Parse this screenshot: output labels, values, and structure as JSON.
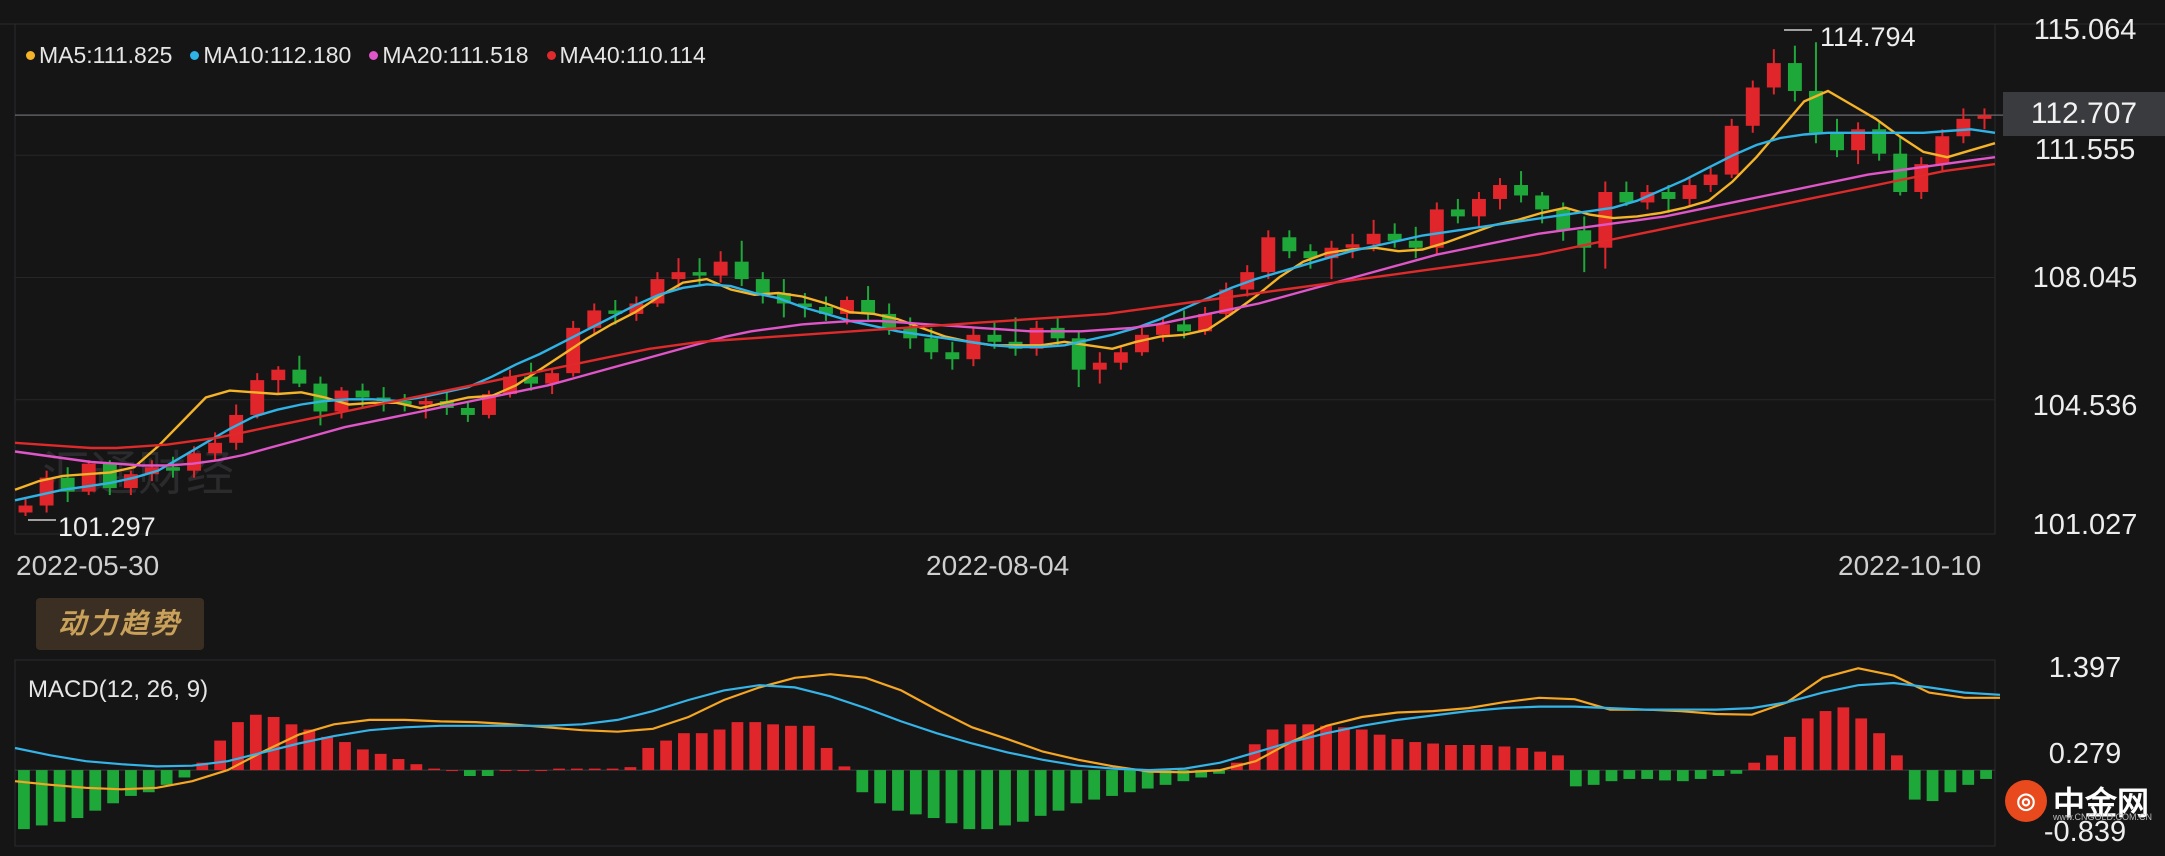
{
  "colors": {
    "background": "#151516",
    "up": "#e0252b",
    "down": "#1fa83a",
    "ma5": "#f5b327",
    "ma10": "#2eb3e6",
    "ma20": "#e055c8",
    "ma40": "#de2a2a",
    "dif": "#f5a623",
    "dea": "#35b4e8"
  },
  "legend": [
    {
      "label": "MA5:111.825",
      "color": "#f5b327"
    },
    {
      "label": "MA10:112.180",
      "color": "#2eb3e6"
    },
    {
      "label": "MA20:111.518",
      "color": "#e055c8"
    },
    {
      "label": "MA40:110.114",
      "color": "#de2a2a"
    }
  ],
  "annotations": {
    "high": "114.794",
    "low": "101.297",
    "last_price": "112.707"
  },
  "trend_button": "动力趋势",
  "macd_title": "MACD(12, 26, 9)",
  "watermark": "汇通财经",
  "logo": {
    "name": "中金网",
    "url": "www.CNGOLD.COM.CN"
  },
  "chart_data": [
    {
      "type": "candlestick",
      "ylim": [
        101.027,
        115.064
      ],
      "y_ticks": [
        "115.064",
        "111.555",
        "108.045",
        "104.536",
        "101.027"
      ],
      "x_ticks": [
        "2022-05-30",
        "2022-08-04",
        "2022-10-10"
      ],
      "last_price": 112.707,
      "candles": [
        [
          101.3,
          101.7,
          101.2,
          101.5
        ],
        [
          101.5,
          102.5,
          101.3,
          102.3
        ],
        [
          102.3,
          102.6,
          101.6,
          101.9
        ],
        [
          101.9,
          102.8,
          101.8,
          102.7
        ],
        [
          102.7,
          102.8,
          101.8,
          102.0
        ],
        [
          102.0,
          102.5,
          101.8,
          102.4
        ],
        [
          102.4,
          102.8,
          102.2,
          102.6
        ],
        [
          102.6,
          102.9,
          102.3,
          102.5
        ],
        [
          102.5,
          103.2,
          102.3,
          103.0
        ],
        [
          103.0,
          103.6,
          102.8,
          103.3
        ],
        [
          103.3,
          104.4,
          103.1,
          104.1
        ],
        [
          104.1,
          105.3,
          104.0,
          105.1
        ],
        [
          105.1,
          105.5,
          104.7,
          105.4
        ],
        [
          105.4,
          105.8,
          104.9,
          105.0
        ],
        [
          105.0,
          105.2,
          103.8,
          104.2
        ],
        [
          104.2,
          104.9,
          104.0,
          104.8
        ],
        [
          104.8,
          105.0,
          104.3,
          104.6
        ],
        [
          104.6,
          104.9,
          104.2,
          104.5
        ],
        [
          104.5,
          104.7,
          104.2,
          104.4
        ],
        [
          104.4,
          104.7,
          104.0,
          104.5
        ],
        [
          104.5,
          104.8,
          104.1,
          104.3
        ],
        [
          104.3,
          104.5,
          103.9,
          104.1
        ],
        [
          104.1,
          104.8,
          104.0,
          104.7
        ],
        [
          104.7,
          105.4,
          104.6,
          105.2
        ],
        [
          105.2,
          105.6,
          104.8,
          105.0
        ],
        [
          105.0,
          105.4,
          104.7,
          105.3
        ],
        [
          105.3,
          106.8,
          105.2,
          106.6
        ],
        [
          106.6,
          107.3,
          106.4,
          107.1
        ],
        [
          107.1,
          107.4,
          106.7,
          107.0
        ],
        [
          107.0,
          107.5,
          106.8,
          107.3
        ],
        [
          107.3,
          108.2,
          107.2,
          108.0
        ],
        [
          108.0,
          108.6,
          107.7,
          108.2
        ],
        [
          108.2,
          108.6,
          107.8,
          108.1
        ],
        [
          108.1,
          108.8,
          107.9,
          108.5
        ],
        [
          108.5,
          109.1,
          107.8,
          108.0
        ],
        [
          108.0,
          108.2,
          107.3,
          107.6
        ],
        [
          107.6,
          108.0,
          106.9,
          107.3
        ],
        [
          107.3,
          107.6,
          106.9,
          107.2
        ],
        [
          107.2,
          107.5,
          106.8,
          107.0
        ],
        [
          107.0,
          107.5,
          106.7,
          107.4
        ],
        [
          107.4,
          107.8,
          106.8,
          107.0
        ],
        [
          107.0,
          107.3,
          106.4,
          106.6
        ],
        [
          106.6,
          106.9,
          106.0,
          106.3
        ],
        [
          106.3,
          106.6,
          105.7,
          105.9
        ],
        [
          105.9,
          106.2,
          105.4,
          105.7
        ],
        [
          105.7,
          106.6,
          105.5,
          106.4
        ],
        [
          106.4,
          106.8,
          106.0,
          106.2
        ],
        [
          106.2,
          106.9,
          105.8,
          106.0
        ],
        [
          106.0,
          106.8,
          105.8,
          106.6
        ],
        [
          106.6,
          106.9,
          106.1,
          106.3
        ],
        [
          106.3,
          106.5,
          104.9,
          105.4
        ],
        [
          105.4,
          105.9,
          105.0,
          105.6
        ],
        [
          105.6,
          106.1,
          105.4,
          105.9
        ],
        [
          105.9,
          106.6,
          105.8,
          106.4
        ],
        [
          106.4,
          106.9,
          106.2,
          106.7
        ],
        [
          106.7,
          107.1,
          106.3,
          106.5
        ],
        [
          106.5,
          107.2,
          106.4,
          107.0
        ],
        [
          107.0,
          107.9,
          106.9,
          107.7
        ],
        [
          107.7,
          108.4,
          107.5,
          108.2
        ],
        [
          108.2,
          109.4,
          108.0,
          109.2
        ],
        [
          109.2,
          109.4,
          108.6,
          108.8
        ],
        [
          108.8,
          109.0,
          108.3,
          108.6
        ],
        [
          108.6,
          109.1,
          108.0,
          108.9
        ],
        [
          108.9,
          109.3,
          108.6,
          109.0
        ],
        [
          109.0,
          109.7,
          108.8,
          109.3
        ],
        [
          109.3,
          109.6,
          108.9,
          109.1
        ],
        [
          109.1,
          109.5,
          108.6,
          108.9
        ],
        [
          108.9,
          110.2,
          108.7,
          110.0
        ],
        [
          110.0,
          110.3,
          109.6,
          109.8
        ],
        [
          109.8,
          110.5,
          109.5,
          110.3
        ],
        [
          110.3,
          110.9,
          110.0,
          110.7
        ],
        [
          110.7,
          111.1,
          110.2,
          110.4
        ],
        [
          110.4,
          110.5,
          109.6,
          110.0
        ],
        [
          110.0,
          110.2,
          109.1,
          109.4
        ],
        [
          109.4,
          109.8,
          108.2,
          108.9
        ],
        [
          108.9,
          110.8,
          108.3,
          110.5
        ],
        [
          110.5,
          110.8,
          110.1,
          110.2
        ],
        [
          110.2,
          110.7,
          110.0,
          110.5
        ],
        [
          110.5,
          110.7,
          109.9,
          110.3
        ],
        [
          110.3,
          110.9,
          110.1,
          110.7
        ],
        [
          110.7,
          111.2,
          110.5,
          111.0
        ],
        [
          111.0,
          112.6,
          110.9,
          112.4
        ],
        [
          112.4,
          113.7,
          112.2,
          113.5
        ],
        [
          113.5,
          114.6,
          113.3,
          114.2
        ],
        [
          114.2,
          114.7,
          113.1,
          113.4
        ],
        [
          113.4,
          114.8,
          111.9,
          112.2
        ],
        [
          112.2,
          112.6,
          111.5,
          111.7
        ],
        [
          111.7,
          112.5,
          111.3,
          112.3
        ],
        [
          112.3,
          112.5,
          111.4,
          111.6
        ],
        [
          111.6,
          112.1,
          110.4,
          110.5
        ],
        [
          110.5,
          111.5,
          110.3,
          111.3
        ],
        [
          111.3,
          112.3,
          111.1,
          112.1
        ],
        [
          112.1,
          112.9,
          111.9,
          112.6
        ],
        [
          112.6,
          112.9,
          112.3,
          112.7
        ]
      ],
      "ma": {
        "MA5": [
          101.95,
          102.2,
          102.35,
          102.4,
          102.45,
          102.6,
          103.2,
          103.9,
          104.6,
          104.8,
          104.75,
          104.7,
          104.75,
          104.6,
          104.4,
          104.45,
          104.45,
          104.3,
          104.45,
          104.6,
          104.65,
          104.95,
          105.4,
          105.85,
          106.3,
          106.7,
          107.05,
          107.5,
          107.9,
          108.0,
          107.7,
          107.55,
          107.6,
          107.5,
          107.3,
          107.05,
          107.0,
          106.85,
          106.6,
          106.35,
          106.2,
          106.1,
          106.1,
          106.1,
          106.2,
          106.1,
          106.0,
          106.2,
          106.35,
          106.4,
          106.55,
          107.0,
          107.5,
          108.05,
          108.5,
          108.75,
          108.85,
          108.9,
          108.8,
          108.85,
          109.05,
          109.3,
          109.55,
          109.7,
          109.9,
          110.05,
          109.85,
          109.75,
          109.8,
          109.9,
          110.05,
          110.25,
          110.8,
          111.5,
          112.3,
          113.1,
          113.4,
          113.0,
          112.6,
          112.1,
          111.65,
          111.5,
          111.7,
          111.9
        ],
        "MA10": [
          101.65,
          101.8,
          101.95,
          102.05,
          102.15,
          102.3,
          102.5,
          102.9,
          103.3,
          103.7,
          104.05,
          104.25,
          104.4,
          104.5,
          104.55,
          104.55,
          104.5,
          104.6,
          104.75,
          104.9,
          105.2,
          105.55,
          105.85,
          106.2,
          106.55,
          106.9,
          107.25,
          107.55,
          107.75,
          107.85,
          107.8,
          107.6,
          107.45,
          107.2,
          107.0,
          106.8,
          106.65,
          106.5,
          106.4,
          106.3,
          106.2,
          106.1,
          106.05,
          106.05,
          106.1,
          106.25,
          106.4,
          106.6,
          106.85,
          107.15,
          107.45,
          107.75,
          108.0,
          108.2,
          108.4,
          108.6,
          108.8,
          108.95,
          109.1,
          109.25,
          109.35,
          109.45,
          109.55,
          109.65,
          109.75,
          109.85,
          109.95,
          110.05,
          110.25,
          110.55,
          110.85,
          111.2,
          111.55,
          111.85,
          112.05,
          112.15,
          112.2,
          112.2,
          112.2,
          112.2,
          112.2,
          112.25,
          112.3,
          112.2
        ],
        "MA20": [
          103.05,
          102.95,
          102.85,
          102.75,
          102.7,
          102.65,
          102.65,
          102.7,
          102.8,
          102.95,
          103.15,
          103.35,
          103.55,
          103.75,
          103.9,
          104.05,
          104.2,
          104.35,
          104.5,
          104.65,
          104.8,
          104.95,
          105.15,
          105.35,
          105.55,
          105.75,
          105.95,
          106.15,
          106.35,
          106.5,
          106.6,
          106.7,
          106.75,
          106.8,
          106.8,
          106.75,
          106.7,
          106.65,
          106.6,
          106.55,
          106.5,
          106.5,
          106.5,
          106.55,
          106.6,
          106.7,
          106.85,
          107.0,
          107.15,
          107.3,
          107.5,
          107.7,
          107.9,
          108.1,
          108.3,
          108.5,
          108.7,
          108.85,
          109.0,
          109.15,
          109.3,
          109.4,
          109.5,
          109.6,
          109.7,
          109.8,
          109.95,
          110.1,
          110.25,
          110.4,
          110.55,
          110.7,
          110.85,
          111.0,
          111.1,
          111.2,
          111.3,
          111.4,
          111.5
        ],
        "MA40": [
          103.3,
          103.25,
          103.2,
          103.15,
          103.15,
          103.2,
          103.25,
          103.35,
          103.45,
          103.6,
          103.75,
          103.9,
          104.05,
          104.2,
          104.35,
          104.5,
          104.65,
          104.8,
          104.95,
          105.1,
          105.25,
          105.4,
          105.55,
          105.7,
          105.85,
          106.0,
          106.1,
          106.2,
          106.25,
          106.3,
          106.35,
          106.4,
          106.45,
          106.5,
          106.55,
          106.6,
          106.65,
          106.7,
          106.75,
          106.8,
          106.85,
          106.9,
          106.95,
          107.0,
          107.1,
          107.2,
          107.3,
          107.4,
          107.5,
          107.6,
          107.7,
          107.8,
          107.9,
          108.0,
          108.1,
          108.2,
          108.3,
          108.4,
          108.5,
          108.6,
          108.7,
          108.85,
          109.0,
          109.15,
          109.3,
          109.45,
          109.6,
          109.75,
          109.9,
          110.05,
          110.2,
          110.35,
          110.5,
          110.65,
          110.8,
          110.95,
          111.1,
          111.2,
          111.3
        ]
      }
    },
    {
      "type": "macd",
      "title": "MACD(12, 26, 9)",
      "ylim": [
        -0.839,
        1.397
      ],
      "y_ticks": [
        "1.397",
        "0.279",
        "-0.839"
      ],
      "histogram": [
        -0.8,
        -0.75,
        -0.7,
        -0.65,
        -0.55,
        -0.45,
        -0.35,
        -0.3,
        -0.2,
        -0.1,
        0.1,
        0.4,
        0.65,
        0.75,
        0.72,
        0.62,
        0.55,
        0.45,
        0.38,
        0.28,
        0.22,
        0.15,
        0.08,
        0.02,
        0.0,
        -0.08,
        -0.08,
        0.0,
        0.0,
        0.0,
        0.02,
        0.02,
        0.02,
        0.02,
        0.04,
        0.3,
        0.4,
        0.5,
        0.5,
        0.55,
        0.65,
        0.65,
        0.62,
        0.6,
        0.6,
        0.3,
        0.05,
        -0.3,
        -0.45,
        -0.55,
        -0.6,
        -0.65,
        -0.72,
        -0.8,
        -0.8,
        -0.75,
        -0.7,
        -0.62,
        -0.55,
        -0.45,
        -0.4,
        -0.35,
        -0.3,
        -0.25,
        -0.2,
        -0.15,
        -0.1,
        -0.05,
        0.1,
        0.35,
        0.55,
        0.62,
        0.62,
        0.6,
        0.58,
        0.55,
        0.48,
        0.42,
        0.38,
        0.36,
        0.34,
        0.34,
        0.34,
        0.32,
        0.3,
        0.25,
        0.2,
        -0.22,
        -0.2,
        -0.15,
        -0.12,
        -0.12,
        -0.14,
        -0.15,
        -0.12,
        -0.08,
        -0.05,
        0.1,
        0.2,
        0.45,
        0.7,
        0.8,
        0.85,
        0.7,
        0.5,
        0.2,
        -0.4,
        -0.42,
        -0.3,
        -0.2,
        -0.12
      ],
      "dif": [
        -0.15,
        -0.2,
        -0.24,
        -0.26,
        -0.24,
        -0.15,
        0.0,
        0.25,
        0.48,
        0.62,
        0.68,
        0.68,
        0.66,
        0.65,
        0.62,
        0.58,
        0.54,
        0.52,
        0.56,
        0.72,
        0.95,
        1.12,
        1.25,
        1.3,
        1.25,
        1.08,
        0.82,
        0.58,
        0.42,
        0.25,
        0.14,
        0.05,
        -0.02,
        -0.03,
        0.0,
        0.12,
        0.38,
        0.6,
        0.72,
        0.78,
        0.8,
        0.84,
        0.92,
        0.98,
        0.96,
        0.82,
        0.82,
        0.8,
        0.76,
        0.75,
        0.92,
        1.25,
        1.38,
        1.28,
        1.05,
        0.98,
        0.98
      ],
      "dea": [
        0.3,
        0.2,
        0.12,
        0.08,
        0.05,
        0.06,
        0.12,
        0.24,
        0.36,
        0.46,
        0.54,
        0.58,
        0.6,
        0.6,
        0.6,
        0.6,
        0.62,
        0.68,
        0.8,
        0.95,
        1.08,
        1.15,
        1.12,
        1.0,
        0.84,
        0.66,
        0.5,
        0.36,
        0.24,
        0.14,
        0.06,
        0.02,
        0.0,
        0.02,
        0.1,
        0.24,
        0.38,
        0.5,
        0.6,
        0.68,
        0.74,
        0.8,
        0.84,
        0.86,
        0.86,
        0.84,
        0.82,
        0.82,
        0.82,
        0.84,
        0.92,
        1.05,
        1.15,
        1.18,
        1.12,
        1.05,
        1.02
      ]
    }
  ]
}
